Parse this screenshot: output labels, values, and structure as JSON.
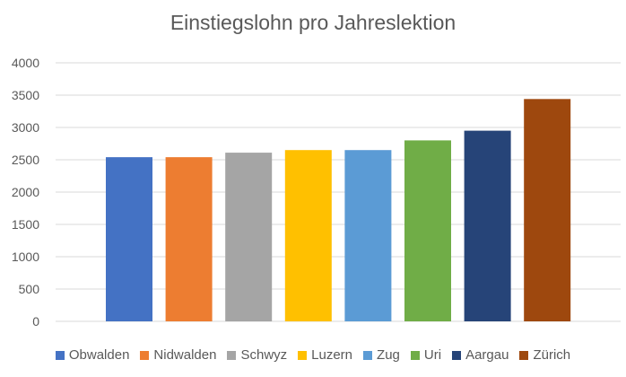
{
  "chart_data": {
    "type": "bar",
    "title": "Einstiegslohn pro Jahreslektion",
    "xlabel": "",
    "ylabel": "",
    "ylim": [
      0,
      4000
    ],
    "yticks": [
      0,
      500,
      1000,
      1500,
      2000,
      2500,
      3000,
      3500,
      4000
    ],
    "grid": true,
    "legend_position": "bottom",
    "categories": [
      "Obwalden",
      "Nidwalden",
      "Schwyz",
      "Luzern",
      "Zug",
      "Uri",
      "Aargau",
      "Zürich"
    ],
    "values": [
      2540,
      2540,
      2610,
      2650,
      2650,
      2800,
      2950,
      3440
    ],
    "colors": [
      "#4472C4",
      "#ED7D31",
      "#A5A5A5",
      "#FFC000",
      "#5B9BD5",
      "#70AD47",
      "#264478",
      "#9E480E"
    ]
  }
}
